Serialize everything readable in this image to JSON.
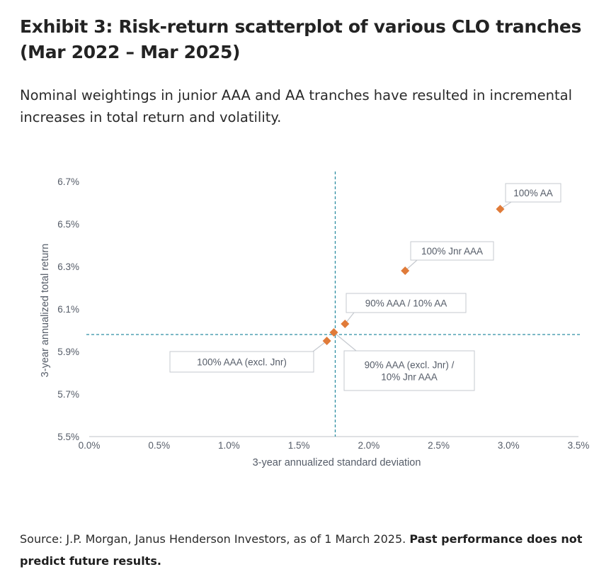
{
  "header": {
    "title": "Exhibit 3: Risk-return scatterplot of various CLO tranches (Mar 2022 – Mar 2025)",
    "subtitle": "Nominal weightings in junior AAA and AA tranches have resulted in incremental increases in total return and volatility."
  },
  "footer": {
    "source_text": "Source: J.P. Morgan, Janus Henderson Investors, as of 1 March 2025.",
    "disclaimer": "Past performance does not predict future results."
  },
  "chart_data": {
    "type": "scatter",
    "title": "",
    "xlabel": "3-year annualized standard deviation",
    "ylabel": "3-year annualized total return",
    "xlim": [
      0.0,
      3.5
    ],
    "ylim": [
      5.5,
      6.7
    ],
    "x_ticks": [
      "0.0%",
      "0.5%",
      "1.0%",
      "1.5%",
      "2.0%",
      "2.5%",
      "3.0%",
      "3.5%"
    ],
    "y_ticks": [
      "5.5%",
      "5.7%",
      "5.9%",
      "6.1%",
      "6.3%",
      "6.5%",
      "6.7%"
    ],
    "grid": false,
    "marker_color": "#e07b39",
    "reference_lines": {
      "x": 1.76,
      "y": 5.98,
      "color": "#2f8fa3",
      "style": "dashed"
    },
    "points": [
      {
        "label": "100% AAA (excl. Jnr)",
        "x": 1.7,
        "y": 5.95
      },
      {
        "label": "90% AAA (excl. Jnr) / 10% Jnr AAA",
        "x": 1.75,
        "y": 5.99
      },
      {
        "label": "90% AAA / 10% AA",
        "x": 1.83,
        "y": 6.03
      },
      {
        "label": "100% Jnr AAA",
        "x": 2.26,
        "y": 6.28
      },
      {
        "label": "100% AA",
        "x": 2.94,
        "y": 6.57
      }
    ]
  }
}
